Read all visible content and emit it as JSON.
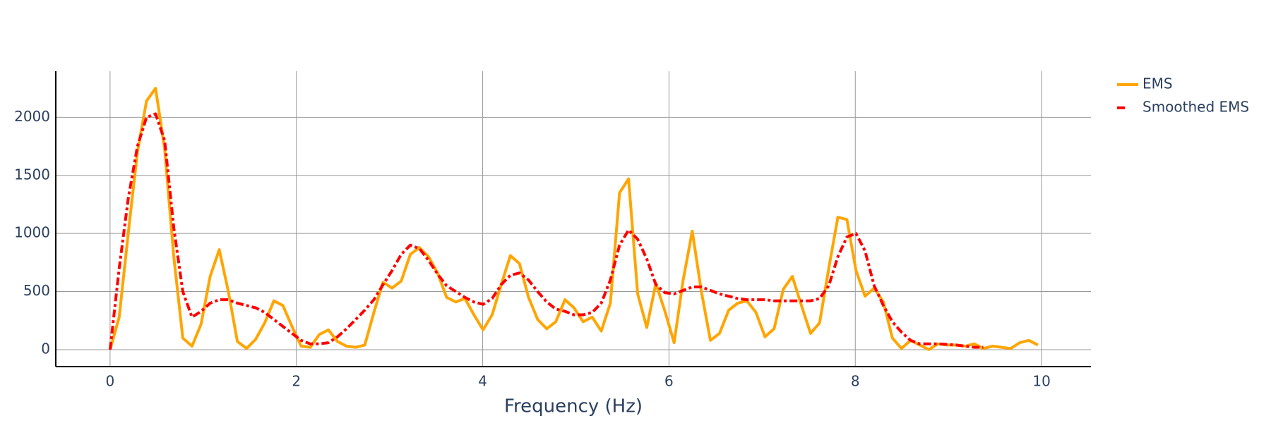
{
  "chart_data": {
    "type": "line",
    "xlabel": "Frequency (Hz)",
    "xlim": [
      -0.583,
      10.53
    ],
    "ylim": [
      -146,
      2397
    ],
    "xticks": [
      0,
      2,
      4,
      6,
      8,
      10
    ],
    "yticks": [
      0,
      500,
      1000,
      1500,
      2000
    ],
    "grid": true,
    "legend": "top-right",
    "series": [
      {
        "name": "EMS",
        "color": "#ffa500",
        "dash": "solid",
        "x": [
          0,
          0.098,
          0.195,
          0.293,
          0.391,
          0.488,
          0.586,
          0.684,
          0.781,
          0.879,
          0.977,
          1.074,
          1.172,
          1.27,
          1.367,
          1.465,
          1.563,
          1.66,
          1.758,
          1.855,
          1.953,
          2.051,
          2.148,
          2.246,
          2.344,
          2.441,
          2.539,
          2.637,
          2.734,
          2.832,
          2.93,
          3.027,
          3.125,
          3.223,
          3.32,
          3.418,
          3.516,
          3.613,
          3.711,
          3.809,
          3.906,
          4.004,
          4.102,
          4.199,
          4.297,
          4.395,
          4.492,
          4.59,
          4.688,
          4.785,
          4.883,
          4.98,
          5.078,
          5.176,
          5.273,
          5.371,
          5.469,
          5.566,
          5.664,
          5.762,
          5.859,
          5.957,
          6.055,
          6.152,
          6.25,
          6.348,
          6.445,
          6.543,
          6.641,
          6.738,
          6.836,
          6.934,
          7.031,
          7.129,
          7.227,
          7.324,
          7.422,
          7.52,
          7.617,
          7.715,
          7.813,
          7.91,
          8.008,
          8.105,
          8.203,
          8.301,
          8.398,
          8.496,
          8.594,
          8.691,
          8.789,
          8.887,
          8.984,
          9.082,
          9.18,
          9.277,
          9.375,
          9.473,
          9.57,
          9.668,
          9.766,
          9.863,
          9.961
        ],
        "values": [
          0,
          280,
          1000,
          1700,
          2140,
          2250,
          1730,
          800,
          100,
          30,
          220,
          630,
          860,
          500,
          70,
          10,
          90,
          230,
          420,
          380,
          200,
          30,
          20,
          130,
          170,
          70,
          30,
          20,
          40,
          320,
          580,
          530,
          590,
          820,
          880,
          800,
          660,
          450,
          410,
          440,
          300,
          170,
          300,
          560,
          810,
          740,
          450,
          260,
          180,
          240,
          430,
          360,
          240,
          280,
          160,
          400,
          1350,
          1470,
          480,
          190,
          570,
          330,
          60,
          600,
          1020,
          500,
          80,
          140,
          340,
          400,
          420,
          320,
          110,
          180,
          520,
          630,
          380,
          140,
          230,
          700,
          1140,
          1120,
          680,
          460,
          530,
          410,
          100,
          10,
          80,
          40,
          0,
          50,
          40,
          40,
          30,
          50,
          10,
          30,
          20,
          10,
          60,
          80,
          40
        ]
      },
      {
        "name": "Smoothed EMS",
        "color": "#ff0000",
        "dash": "dashdot",
        "x": [
          0,
          0.098,
          0.195,
          0.293,
          0.391,
          0.488,
          0.586,
          0.684,
          0.781,
          0.879,
          0.977,
          1.074,
          1.172,
          1.27,
          1.367,
          1.465,
          1.563,
          1.66,
          1.758,
          1.855,
          1.953,
          2.051,
          2.148,
          2.246,
          2.344,
          2.441,
          2.539,
          2.637,
          2.734,
          2.832,
          2.93,
          3.027,
          3.125,
          3.223,
          3.32,
          3.418,
          3.516,
          3.613,
          3.711,
          3.809,
          3.906,
          4.004,
          4.102,
          4.199,
          4.297,
          4.395,
          4.492,
          4.59,
          4.688,
          4.785,
          4.883,
          4.98,
          5.078,
          5.176,
          5.273,
          5.371,
          5.469,
          5.566,
          5.664,
          5.762,
          5.859,
          5.957,
          6.055,
          6.152,
          6.25,
          6.348,
          6.445,
          6.543,
          6.641,
          6.738,
          6.836,
          6.934,
          7.031,
          7.129,
          7.227,
          7.324,
          7.422,
          7.52,
          7.617,
          7.715,
          7.813,
          7.91,
          8.008,
          8.105,
          8.203,
          8.301,
          8.398,
          8.496,
          8.594,
          8.691,
          8.789,
          8.887,
          8.984,
          9.082,
          9.18,
          9.277,
          9.375
        ],
        "values": [
          0,
          700,
          1300,
          1750,
          2000,
          2030,
          1800,
          1050,
          500,
          280,
          330,
          400,
          430,
          430,
          400,
          380,
          360,
          320,
          260,
          200,
          140,
          80,
          50,
          50,
          60,
          110,
          180,
          260,
          340,
          430,
          560,
          680,
          820,
          900,
          870,
          770,
          650,
          550,
          500,
          450,
          410,
          390,
          440,
          560,
          640,
          660,
          600,
          500,
          410,
          350,
          330,
          300,
          300,
          320,
          400,
          600,
          900,
          1030,
          950,
          780,
          560,
          490,
          480,
          510,
          540,
          540,
          510,
          480,
          460,
          440,
          430,
          430,
          430,
          420,
          420,
          420,
          420,
          420,
          440,
          550,
          800,
          970,
          1000,
          850,
          550,
          380,
          240,
          150,
          80,
          50,
          50,
          50,
          45,
          40,
          30,
          20,
          20
        ]
      }
    ]
  }
}
